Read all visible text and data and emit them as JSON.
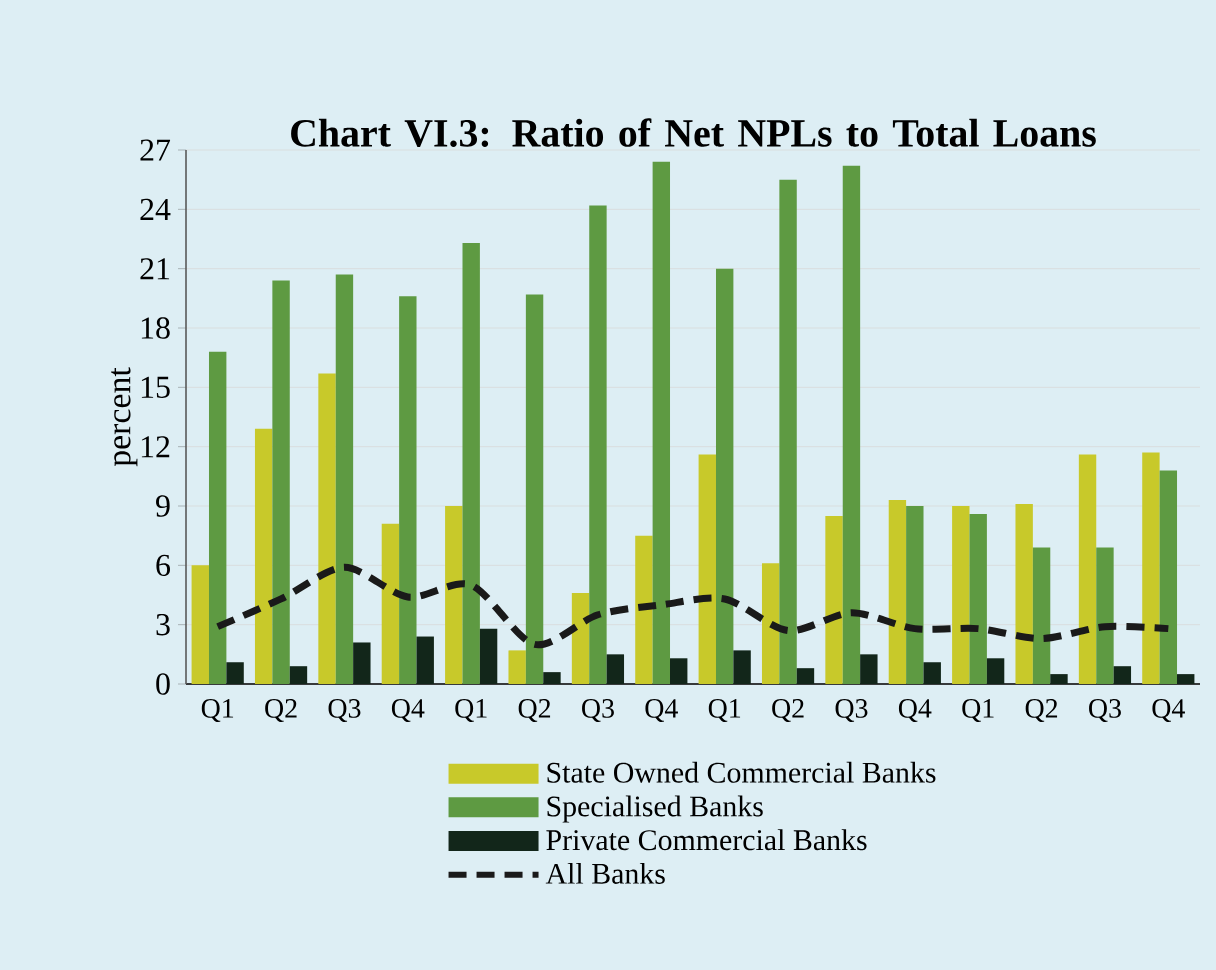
{
  "chart_data": {
    "type": "bar",
    "title": "Chart VI.3: Ratio of Net NPLs to Total Loans",
    "ylabel": "percent",
    "categories": [
      "Q1",
      "Q2",
      "Q3",
      "Q4",
      "Q1",
      "Q2",
      "Q3",
      "Q4",
      "Q1",
      "Q2",
      "Q3",
      "Q4",
      "Q1",
      "Q2",
      "Q3",
      "Q4"
    ],
    "series": [
      {
        "name": "State Owned Commercial Banks",
        "color": "#c8c92a",
        "values": [
          6.0,
          12.9,
          15.7,
          8.1,
          9.0,
          1.7,
          4.6,
          7.5,
          11.6,
          6.1,
          8.5,
          9.3,
          9.0,
          9.1,
          11.6,
          11.7
        ]
      },
      {
        "name": "Specialised Banks",
        "color": "#5e9a42",
        "values": [
          16.8,
          20.4,
          20.7,
          19.6,
          22.3,
          19.7,
          24.2,
          26.4,
          21.0,
          25.5,
          26.2,
          9.0,
          8.6,
          6.9,
          6.9,
          10.8
        ]
      },
      {
        "name": "Private Commercial Banks",
        "color": "#12261a",
        "values": [
          1.1,
          0.9,
          2.1,
          2.4,
          2.8,
          0.6,
          1.5,
          1.3,
          1.7,
          0.8,
          1.5,
          1.1,
          1.3,
          0.5,
          0.9,
          0.5
        ]
      },
      {
        "name": "All Banks",
        "type": "line",
        "color": "#1a1a1a",
        "line_style": "dashed",
        "values": [
          2.9,
          4.3,
          5.9,
          4.4,
          5.0,
          2.0,
          3.5,
          4.0,
          4.3,
          2.7,
          3.6,
          2.8,
          2.8,
          2.3,
          2.9,
          2.8
        ]
      }
    ],
    "ylim": [
      0,
      27
    ],
    "yticks": [
      0,
      3,
      6,
      9,
      12,
      15,
      18,
      21,
      24,
      27
    ],
    "grid": "y",
    "legend": "bottom"
  }
}
